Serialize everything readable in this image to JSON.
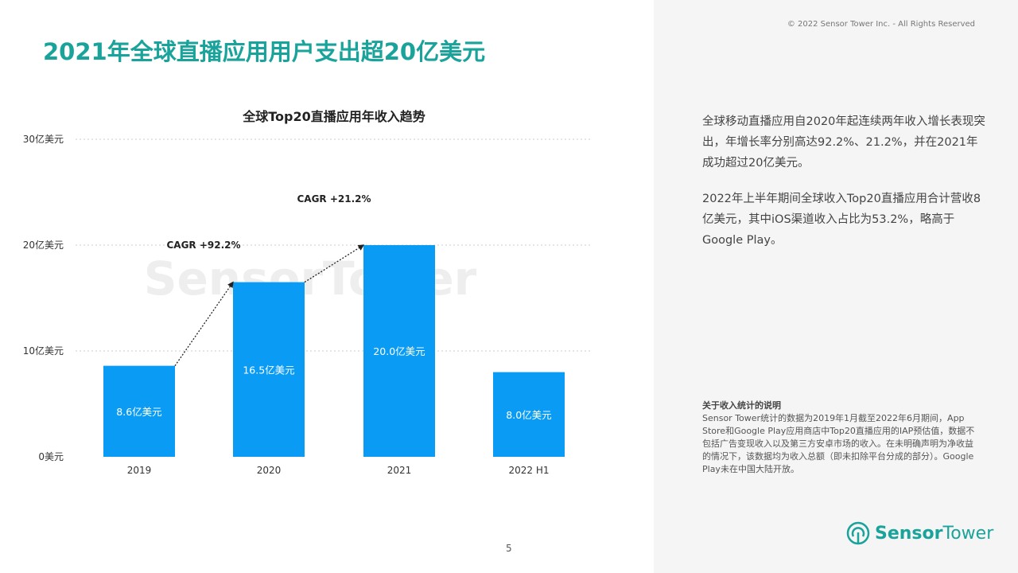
{
  "header": {
    "title": "2021年全球直播应用用户支出超20亿美元",
    "copyright": "© 2022 Sensor Tower Inc. - All Rights Reserved",
    "page": "5"
  },
  "sidebar": {
    "para1": "全球移动直播应用自2020年起连续两年收入增长表现突出，年增长率分别高达92.2%、21.2%，并在2021年成功超过20亿美元。",
    "para2": "2022年上半年期间全球收入Top20直播应用合计营收8亿美元，其中iOS渠道收入占比为53.2%，略高于Google Play。",
    "note_title": "关于收入统计的说明",
    "note_body": "Sensor Tower统计的数据为2019年1月截至2022年6月期间，App Store和Google Play应用商店中Top20直播应用的IAP预估值，数据不包括广告变现收入以及第三方安卓市场的收入。在未明确声明为净收益的情况下，该数据均为收入总额（即未扣除平台分成的部分）。Google Play未在中国大陆开放。",
    "logo": "SensorTower"
  },
  "watermark": "SensorTower",
  "chart_data": {
    "type": "bar",
    "title": "全球Top20直播应用年收入趋势",
    "categories": [
      "2019",
      "2020",
      "2021",
      "2022 H1"
    ],
    "values": [
      8.6,
      16.5,
      20.0,
      8.0
    ],
    "data_labels": [
      "8.6亿美元",
      "16.5亿美元",
      "20.0亿美元",
      "8.0亿美元"
    ],
    "ylim": [
      0,
      30
    ],
    "yticks": [
      {
        "value": 0,
        "label": "0美元"
      },
      {
        "value": 10,
        "label": "10亿美元"
      },
      {
        "value": 20,
        "label": "20亿美元"
      },
      {
        "value": 30,
        "label": "30亿美元"
      }
    ],
    "grid": true,
    "bar_color": "#0a9cf5",
    "annotations": [
      {
        "text": "CAGR +92.2%",
        "from": "2019",
        "to": "2020"
      },
      {
        "text": "CAGR +21.2%",
        "from": "2020",
        "to": "2021"
      }
    ]
  }
}
